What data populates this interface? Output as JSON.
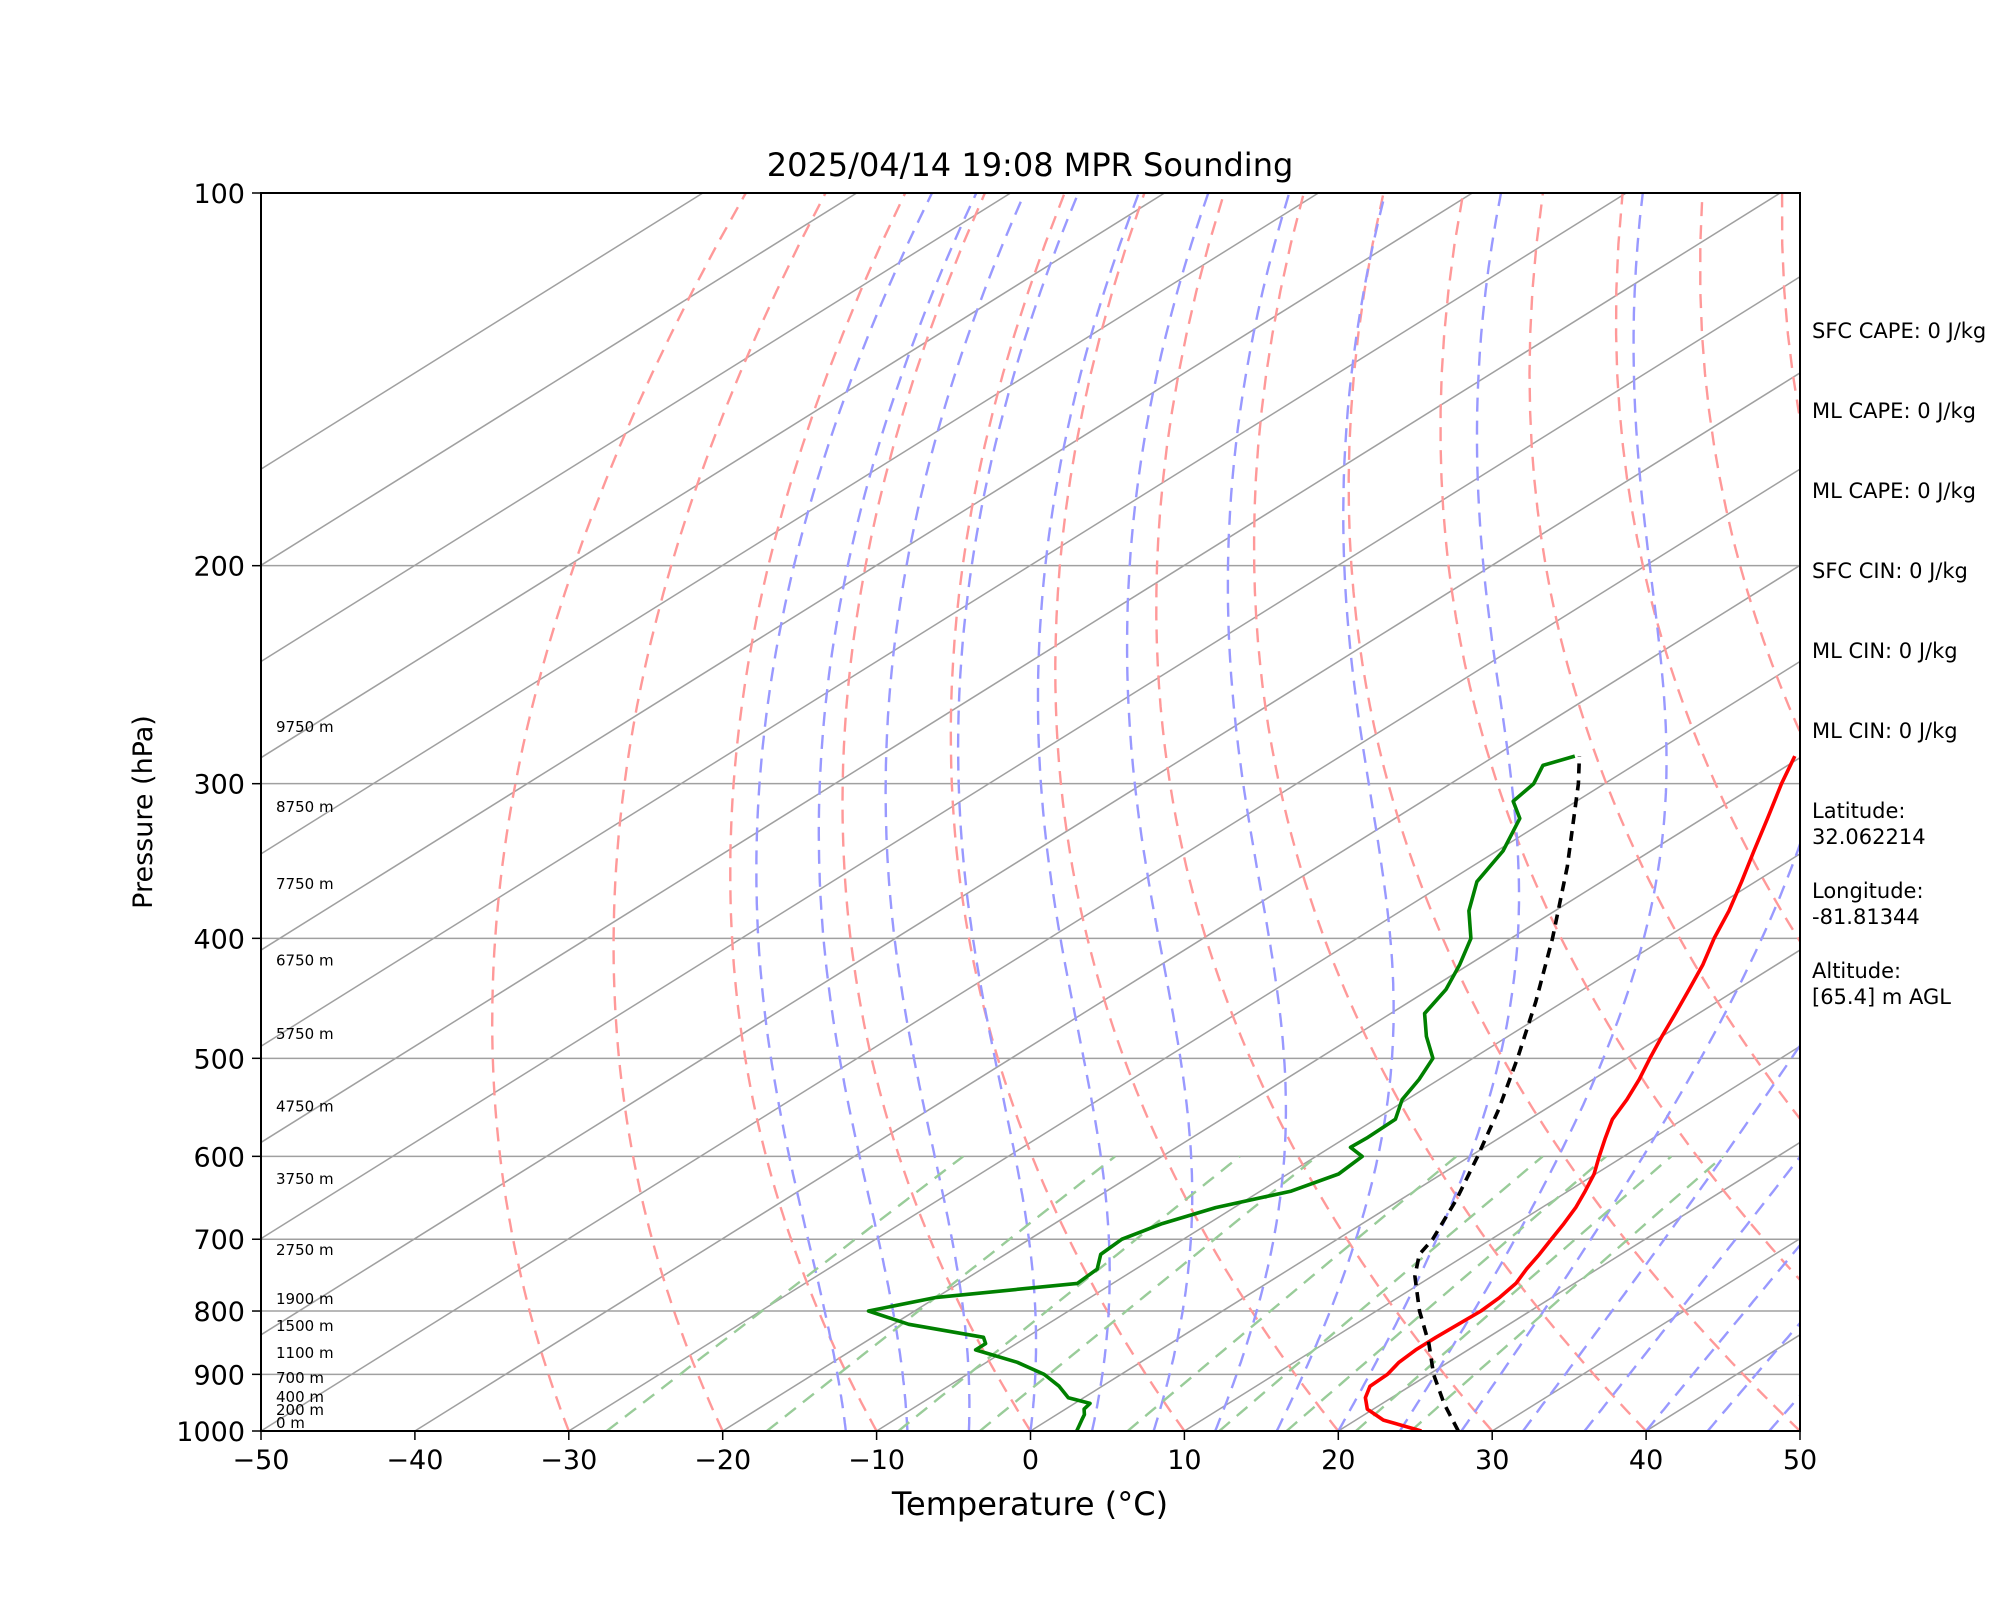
{
  "chart_data": {
    "type": "line",
    "title": "2025/04/14 19:08 MPR Sounding",
    "xlabel": "Temperature (°C)",
    "ylabel": "Pressure (hPa)",
    "xlim": [
      -50,
      50
    ],
    "ylim": [
      1000,
      100
    ],
    "y_scale": "log",
    "x_ticks": [
      "−50",
      "−40",
      "−30",
      "−20",
      "−10",
      "0",
      "10",
      "20",
      "30",
      "40",
      "50"
    ],
    "y_ticks": [
      "100",
      "200",
      "300",
      "400",
      "500",
      "600",
      "700",
      "800",
      "900",
      "1000"
    ],
    "grid": true,
    "series": [
      {
        "role": "temperature",
        "color": "#ff0000",
        "style": "solid",
        "points": [
          [
            1000,
            25.4
          ],
          [
            980,
            21.8
          ],
          [
            960,
            19.6
          ],
          [
            940,
            18.3
          ],
          [
            920,
            17.4
          ],
          [
            900,
            17.3
          ],
          [
            880,
            16.8
          ],
          [
            860,
            16.6
          ],
          [
            840,
            16.6
          ],
          [
            820,
            16.7
          ],
          [
            800,
            16.8
          ],
          [
            780,
            16.6
          ],
          [
            760,
            16.2
          ],
          [
            740,
            15.4
          ],
          [
            720,
            14.7
          ],
          [
            700,
            13.9
          ],
          [
            680,
            13.1
          ],
          [
            660,
            12.2
          ],
          [
            640,
            11.1
          ],
          [
            620,
            9.9
          ],
          [
            600,
            8.4
          ],
          [
            580,
            6.9
          ],
          [
            560,
            5.4
          ],
          [
            540,
            4.3
          ],
          [
            520,
            3.0
          ],
          [
            500,
            1.5
          ],
          [
            480,
            0.0
          ],
          [
            460,
            -1.5
          ],
          [
            440,
            -3.1
          ],
          [
            420,
            -4.8
          ],
          [
            400,
            -6.8
          ],
          [
            380,
            -8.7
          ],
          [
            360,
            -10.9
          ],
          [
            340,
            -13.3
          ],
          [
            320,
            -15.8
          ],
          [
            300,
            -18.5
          ],
          [
            285,
            -20.5
          ]
        ]
      },
      {
        "role": "dewpoint",
        "color": "#008000",
        "style": "solid",
        "points": [
          [
            1000,
            3.0
          ],
          [
            990,
            2.6
          ],
          [
            980,
            2.2
          ],
          [
            970,
            1.8
          ],
          [
            960,
            1.2
          ],
          [
            950,
            1.0
          ],
          [
            940,
            -1.0
          ],
          [
            920,
            -2.8
          ],
          [
            900,
            -5.0
          ],
          [
            880,
            -8.0
          ],
          [
            860,
            -12.0
          ],
          [
            850,
            -12.0
          ],
          [
            840,
            -12.8
          ],
          [
            820,
            -19.0
          ],
          [
            800,
            -23.0
          ],
          [
            780,
            -20.0
          ],
          [
            760,
            -12.3
          ],
          [
            740,
            -12.5
          ],
          [
            720,
            -13.8
          ],
          [
            700,
            -14.0
          ],
          [
            680,
            -13.0
          ],
          [
            660,
            -11.2
          ],
          [
            640,
            -8.0
          ],
          [
            620,
            -6.7
          ],
          [
            600,
            -7.0
          ],
          [
            590,
            -8.7
          ],
          [
            580,
            -8.6
          ],
          [
            560,
            -8.7
          ],
          [
            540,
            -10.3
          ],
          [
            520,
            -11.3
          ],
          [
            500,
            -12.6
          ],
          [
            480,
            -15.3
          ],
          [
            460,
            -17.8
          ],
          [
            440,
            -18.9
          ],
          [
            420,
            -20.6
          ],
          [
            400,
            -22.6
          ],
          [
            380,
            -25.6
          ],
          [
            360,
            -28.1
          ],
          [
            340,
            -29.6
          ],
          [
            320,
            -31.9
          ],
          [
            310,
            -34.1
          ],
          [
            300,
            -34.6
          ],
          [
            290,
            -35.9
          ],
          [
            285,
            -34.8
          ]
        ]
      },
      {
        "role": "parcel",
        "color": "#000000",
        "style": "dashed",
        "points": [
          [
            1000,
            27.8
          ],
          [
            950,
            24.0
          ],
          [
            900,
            20.3
          ],
          [
            850,
            16.8
          ],
          [
            800,
            12.8
          ],
          [
            750,
            8.9
          ],
          [
            720,
            6.9
          ],
          [
            700,
            6.2
          ],
          [
            650,
            3.6
          ],
          [
            600,
            0.5
          ],
          [
            550,
            -3.0
          ],
          [
            500,
            -7.1
          ],
          [
            450,
            -11.8
          ],
          [
            400,
            -17.3
          ],
          [
            350,
            -23.8
          ],
          [
            300,
            -31.7
          ],
          [
            285,
            -34.5
          ]
        ]
      }
    ],
    "height_labels": [
      {
        "p": 1000,
        "text": "0 m"
      },
      {
        "p": 976,
        "text": "200 m"
      },
      {
        "p": 953,
        "text": "400 m"
      },
      {
        "p": 920,
        "text": "700 m"
      },
      {
        "p": 878,
        "text": "1100 m"
      },
      {
        "p": 835,
        "text": "1500 m"
      },
      {
        "p": 794,
        "text": "1900 m"
      },
      {
        "p": 725,
        "text": "2750 m"
      },
      {
        "p": 635,
        "text": "3750 m"
      },
      {
        "p": 555,
        "text": "4750 m"
      },
      {
        "p": 485,
        "text": "5750 m"
      },
      {
        "p": 423,
        "text": "6750 m"
      },
      {
        "p": 367,
        "text": "7750 m"
      },
      {
        "p": 318,
        "text": "8750 m"
      },
      {
        "p": 274,
        "text": "9750 m"
      }
    ],
    "background_colors": {
      "isotherms": "#a0a0a0",
      "dry_adiabats": "#ff9999",
      "moist_adiabats": "#9999ff",
      "mixing_ratio": "#99cc99",
      "isobars": "#a0a0a0"
    }
  },
  "sidebar": {
    "items": [
      {
        "lines": [
          "SFC CAPE: 0 J/kg"
        ]
      },
      {
        "lines": [
          "ML CAPE: 0 J/kg"
        ]
      },
      {
        "lines": [
          "ML CAPE: 0 J/kg"
        ]
      },
      {
        "lines": [
          "SFC CIN: 0 J/kg"
        ]
      },
      {
        "lines": [
          "ML CIN: 0 J/kg"
        ]
      },
      {
        "lines": [
          "ML CIN: 0 J/kg"
        ]
      },
      {
        "lines": [
          "Latitude:",
          "32.062214"
        ]
      },
      {
        "lines": [
          "Longitude:",
          "-81.81344"
        ]
      },
      {
        "lines": [
          "Altitude:",
          "[65.4] m AGL"
        ]
      }
    ]
  }
}
